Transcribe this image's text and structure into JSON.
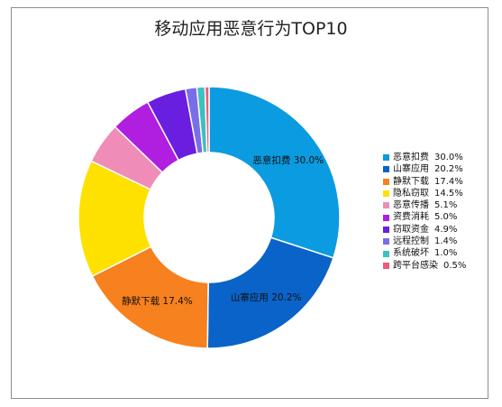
{
  "chart_data": {
    "type": "pie",
    "title": "移动应用恶意行为TOP10",
    "donut": true,
    "legend_position": "right",
    "categories": [
      "恶意扣费",
      "山寨应用",
      "静默下载",
      "隐私窃取",
      "恶意传播",
      "资费消耗",
      "窃取资金",
      "远程控制",
      "系统破坏",
      "跨平台感染"
    ],
    "values": [
      30.0,
      20.2,
      17.4,
      14.5,
      5.1,
      5.0,
      4.9,
      1.4,
      1.0,
      0.5
    ],
    "value_labels": [
      "30.0%",
      "20.2%",
      "17.4%",
      "14.5%",
      "5.1%",
      "5.0%",
      "4.9%",
      "1.4%",
      "1.0%",
      "0.5%"
    ],
    "colors": [
      "#0b9be0",
      "#0a63c8",
      "#f7801f",
      "#ffe100",
      "#f08cb8",
      "#b01ee0",
      "#6a1ee0",
      "#7a6ee8",
      "#3cc0c0",
      "#ef5a78"
    ],
    "slice_labels": [
      {
        "index": 0,
        "text": "恶意扣费  30.0%"
      },
      {
        "index": 1,
        "text": "山寨应用  20.2%"
      },
      {
        "index": 2,
        "text": "静默下载  17.4%"
      }
    ]
  }
}
